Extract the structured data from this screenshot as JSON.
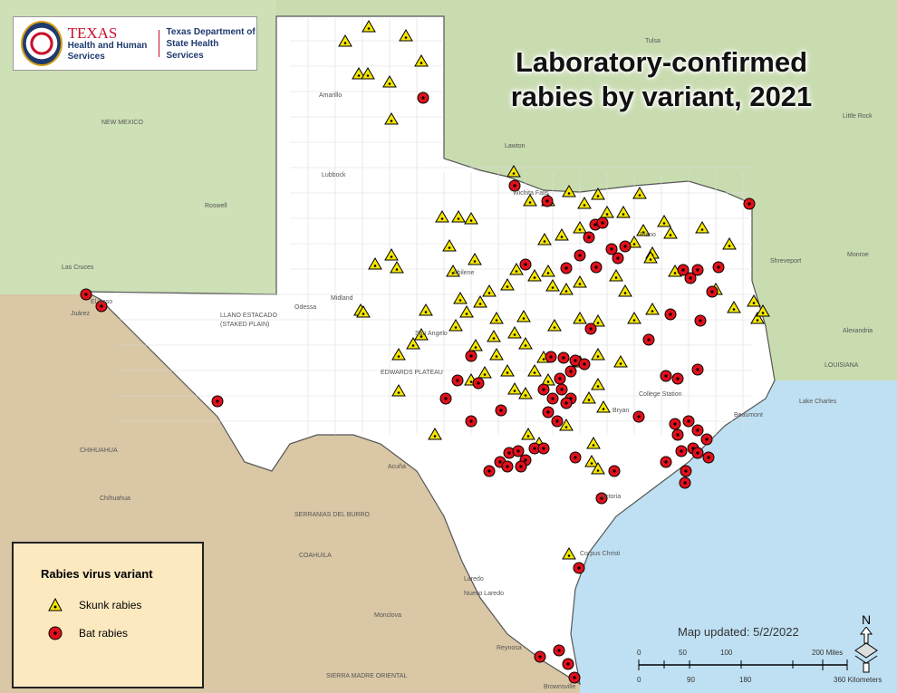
{
  "logo": {
    "agency_1_name": "TEXAS",
    "agency_1_sub": "Health and Human Services",
    "agency_2": "Texas Department of State Health Services"
  },
  "title": "Laboratory-confirmed rabies by variant, 2021",
  "legend": {
    "title": "Rabies virus variant",
    "items": [
      {
        "label": "Skunk rabies",
        "symbol": "triangle",
        "color": "#f5e600"
      },
      {
        "label": "Bat rabies",
        "symbol": "circle",
        "color": "#e0101a"
      }
    ]
  },
  "map_updated": "Map updated: 5/2/2022",
  "scale": {
    "miles_ticks": [
      "0",
      "50",
      "100",
      "200 Miles"
    ],
    "km_ticks": [
      "0",
      "90",
      "180",
      "360 Kilometers"
    ]
  },
  "north_arrow": "N",
  "map_labels": {
    "amarillo": "Amarillo",
    "lubbock": "Lubbock",
    "el_paso": "El Paso",
    "juarez": "Juárez",
    "odessa": "Odessa",
    "midland": "Midland",
    "abilene": "Abilene",
    "san_angelo": "San Angelo",
    "plano": "Plano",
    "bryan": "Bryan",
    "college_station": "College Station",
    "beaumont": "Beaumont",
    "victoria": "Victoria",
    "corpus_christi": "Corpus Christi",
    "laredo": "Laredo",
    "nuevo_laredo": "Nuevo Laredo",
    "brownsville": "Brownsville",
    "reynosa": "Reynosa",
    "acuna": "Acuña",
    "shreveport": "Shreveport",
    "new_mexico": "NEW MEXICO",
    "louisiana": "LOUISIANA",
    "chihuahua_state": "CHIHUAHUA",
    "chihuahua": "Chihuahua",
    "coahuila": "COAHUILA",
    "monclova": "Monclova",
    "llano": "LLANO ESTACADO",
    "staked": "(STAKED PLAIN)",
    "edwards": "EDWARDS PLATEAU",
    "sierra_madre": "SIERRA MADRE ORIENTAL",
    "serranias": "SERRANIAS DEL BURRO",
    "roswell": "Roswell",
    "las_cruces": "Las Cruces",
    "lawton": "Lawton",
    "tulsa": "Tulsa",
    "little_rock": "Little Rock",
    "alexandria": "Alexandria",
    "lake_charles": "Lake Charles",
    "monroe": "Monroe",
    "wichita_falls": "Wichita Falls"
  },
  "colors": {
    "texas": "#ffffff",
    "surrounding_us": "#c9dcb0",
    "mexico": "#d9c7a5",
    "gulf": "#bfe0f2",
    "skunk": "#f5e600",
    "bat": "#e0101a"
  }
}
